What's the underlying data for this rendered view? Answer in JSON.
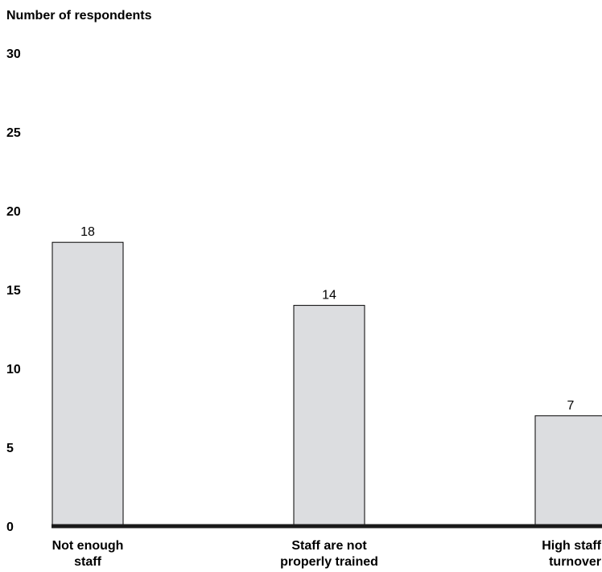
{
  "chart_data": {
    "type": "bar",
    "ylabel": "Number  of respondents",
    "ylim": [
      0,
      30
    ],
    "yticks": [
      0,
      5,
      10,
      15,
      20,
      25,
      30
    ],
    "categories": [
      [
        "Not enough",
        "staff"
      ],
      [
        "Staff are not",
        "properly trained"
      ],
      [
        "High staff",
        "turnover"
      ]
    ],
    "values": [
      18,
      14,
      7
    ],
    "data_labels": [
      "18",
      "14",
      "7"
    ],
    "grid": false,
    "legend": "none",
    "colors": {
      "bar_fill": "#dcdde0",
      "bar_stroke": "#000000",
      "baseline": "#1a1a1a"
    }
  }
}
